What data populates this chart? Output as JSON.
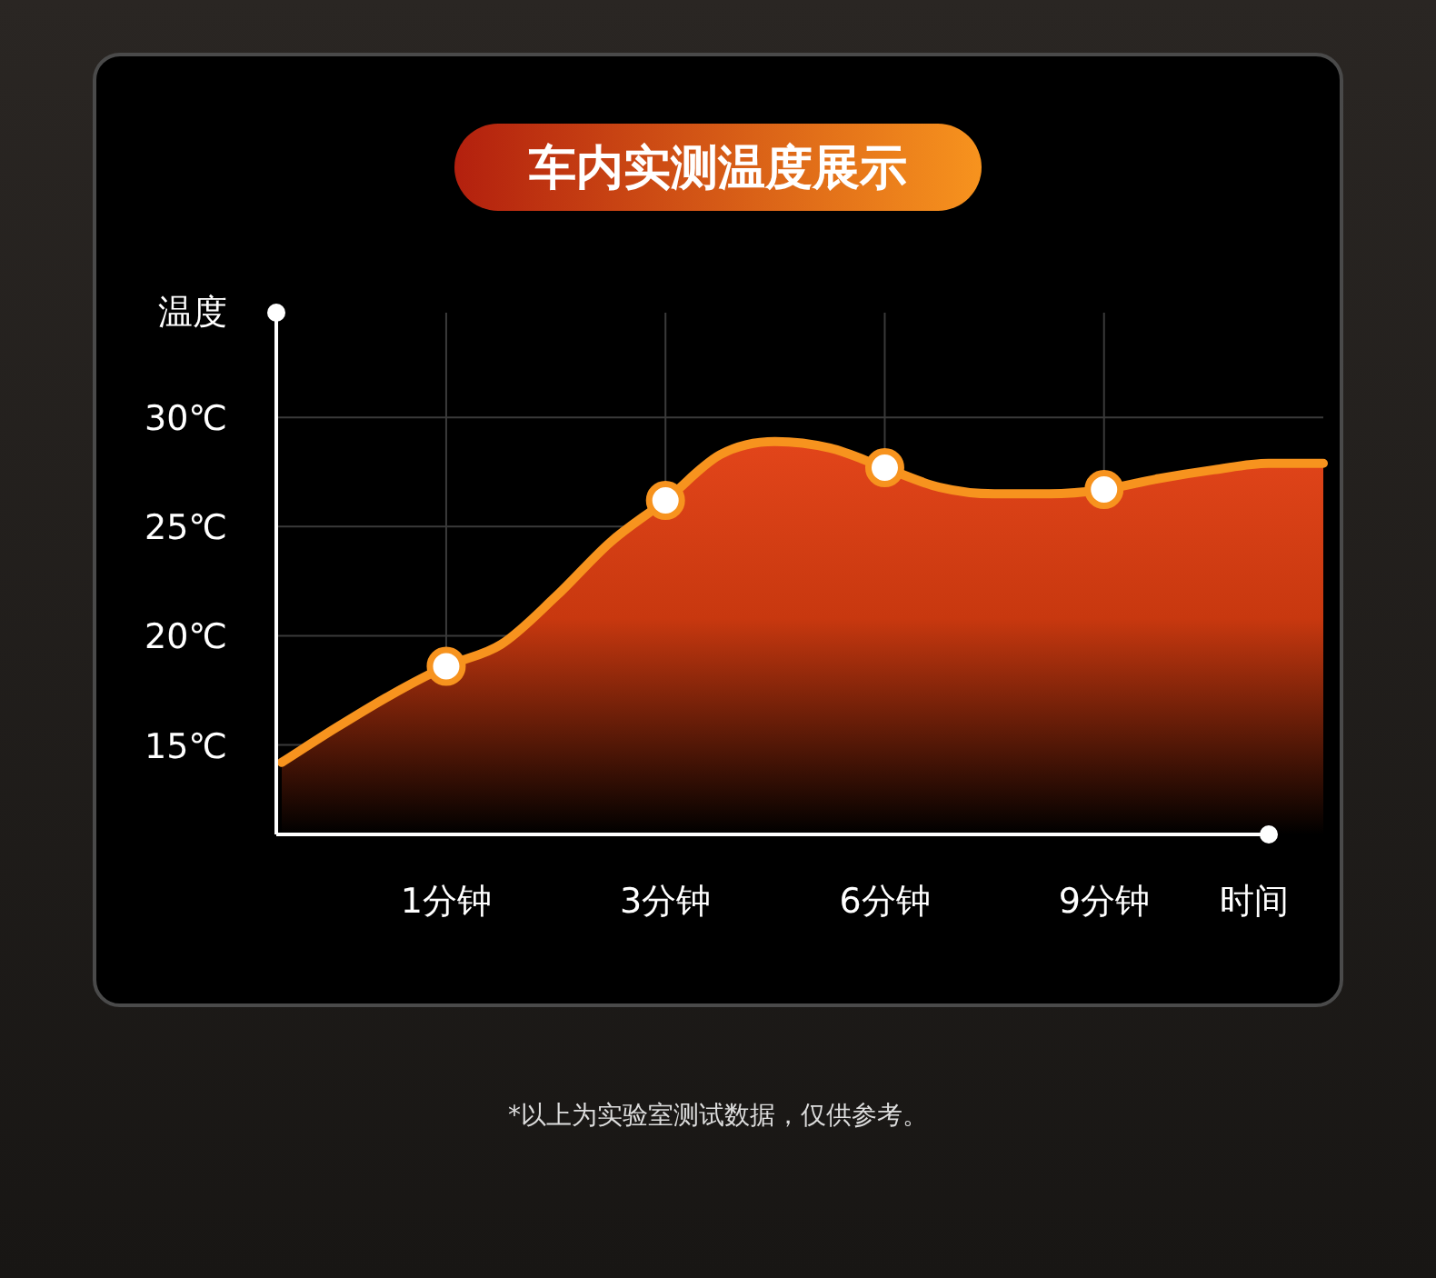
{
  "chart_data": {
    "type": "area",
    "title": "车内实测温度展示",
    "ylabel": "温度",
    "xlabel": "时间",
    "annotations": [
      "*以上为实验室测试数据，仅供参考。"
    ],
    "categories": [
      null,
      null,
      null,
      "1分钟",
      null,
      null,
      null,
      "3分钟",
      null,
      null,
      null,
      "6分钟",
      null,
      null,
      null,
      "9分钟",
      null,
      null,
      null,
      null
    ],
    "ylim": [
      10.9,
      34.8
    ],
    "yticks": [
      {
        "value": 15,
        "label": "15℃"
      },
      {
        "value": 20,
        "label": "20℃"
      },
      {
        "value": 25,
        "label": "25℃"
      },
      {
        "value": 30,
        "label": "30℃"
      }
    ],
    "grid": true,
    "series": [
      {
        "color": "#f7931e",
        "marker": "none",
        "values": [
          14.2,
          15.8,
          17.3,
          18.6,
          19.6,
          21.8,
          24.3,
          26.2,
          28.3,
          28.9,
          28.6,
          27.7,
          26.8,
          26.5,
          26.5,
          26.7,
          27.2,
          27.6,
          27.9,
          27.9
        ]
      },
      {
        "type": "scatter",
        "color": "#f7931e",
        "marker": "circle",
        "values": [
          null,
          null,
          null,
          18.6,
          null,
          null,
          null,
          26.2,
          null,
          null,
          null,
          27.7,
          null,
          null,
          null,
          26.7,
          null,
          null,
          null,
          null
        ]
      }
    ]
  }
}
